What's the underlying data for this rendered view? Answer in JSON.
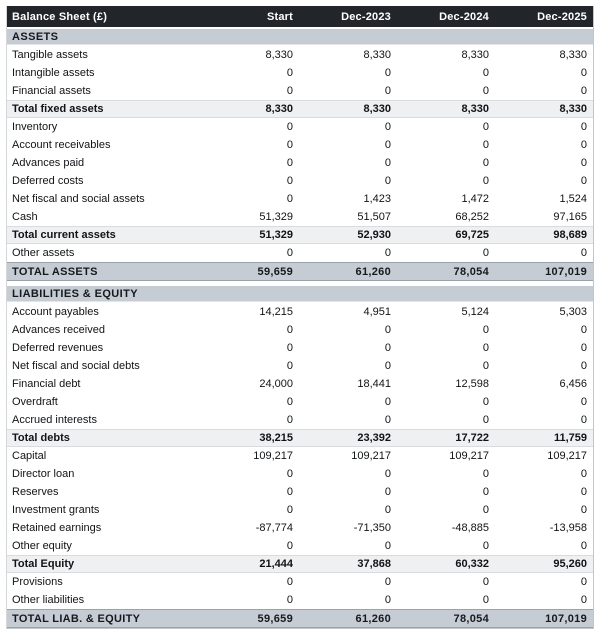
{
  "table": {
    "title": "Balance Sheet (£)",
    "columns": [
      "Start",
      "Dec-2023",
      "Dec-2024",
      "Dec-2025"
    ],
    "colors": {
      "header_bg": "#22262b",
      "header_text": "#ffffff",
      "section_bg": "#c6ccd3",
      "subtotal_bg": "#eef0f2",
      "total_bg": "#c6ccd3",
      "body_text": "#111316"
    },
    "sections": [
      {
        "title": "ASSETS",
        "rows": [
          {
            "label": "Tangible assets",
            "style": "normal",
            "values": [
              "8,330",
              "8,330",
              "8,330",
              "8,330"
            ]
          },
          {
            "label": "Intangible assets",
            "style": "normal",
            "values": [
              "0",
              "0",
              "0",
              "0"
            ]
          },
          {
            "label": "Financial assets",
            "style": "normal",
            "values": [
              "0",
              "0",
              "0",
              "0"
            ]
          },
          {
            "label": "Total fixed assets",
            "style": "subtotal",
            "values": [
              "8,330",
              "8,330",
              "8,330",
              "8,330"
            ]
          },
          {
            "label": "Inventory",
            "style": "normal",
            "values": [
              "0",
              "0",
              "0",
              "0"
            ]
          },
          {
            "label": "Account receivables",
            "style": "normal",
            "values": [
              "0",
              "0",
              "0",
              "0"
            ]
          },
          {
            "label": "Advances paid",
            "style": "normal",
            "values": [
              "0",
              "0",
              "0",
              "0"
            ]
          },
          {
            "label": "Deferred costs",
            "style": "normal",
            "values": [
              "0",
              "0",
              "0",
              "0"
            ]
          },
          {
            "label": "Net fiscal and social assets",
            "style": "normal",
            "values": [
              "0",
              "1,423",
              "1,472",
              "1,524"
            ]
          },
          {
            "label": "Cash",
            "style": "normal",
            "values": [
              "51,329",
              "51,507",
              "68,252",
              "97,165"
            ]
          },
          {
            "label": "Total current assets",
            "style": "subtotal",
            "values": [
              "51,329",
              "52,930",
              "69,725",
              "98,689"
            ]
          },
          {
            "label": "Other assets",
            "style": "normal",
            "values": [
              "0",
              "0",
              "0",
              "0"
            ]
          },
          {
            "label": "TOTAL ASSETS",
            "style": "total",
            "values": [
              "59,659",
              "61,260",
              "78,054",
              "107,019"
            ]
          }
        ]
      },
      {
        "title": "LIABILITIES & EQUITY",
        "rows": [
          {
            "label": "Account payables",
            "style": "normal",
            "values": [
              "14,215",
              "4,951",
              "5,124",
              "5,303"
            ]
          },
          {
            "label": "Advances received",
            "style": "normal",
            "values": [
              "0",
              "0",
              "0",
              "0"
            ]
          },
          {
            "label": "Deferred revenues",
            "style": "normal",
            "values": [
              "0",
              "0",
              "0",
              "0"
            ]
          },
          {
            "label": "Net fiscal and social debts",
            "style": "normal",
            "values": [
              "0",
              "0",
              "0",
              "0"
            ]
          },
          {
            "label": "Financial debt",
            "style": "normal",
            "values": [
              "24,000",
              "18,441",
              "12,598",
              "6,456"
            ]
          },
          {
            "label": "Overdraft",
            "style": "normal",
            "values": [
              "0",
              "0",
              "0",
              "0"
            ]
          },
          {
            "label": "Accrued interests",
            "style": "normal",
            "values": [
              "0",
              "0",
              "0",
              "0"
            ]
          },
          {
            "label": "Total debts",
            "style": "subtotal",
            "values": [
              "38,215",
              "23,392",
              "17,722",
              "11,759"
            ]
          },
          {
            "label": "Capital",
            "style": "normal",
            "values": [
              "109,217",
              "109,217",
              "109,217",
              "109,217"
            ]
          },
          {
            "label": "Director loan",
            "style": "normal",
            "values": [
              "0",
              "0",
              "0",
              "0"
            ]
          },
          {
            "label": "Reserves",
            "style": "normal",
            "values": [
              "0",
              "0",
              "0",
              "0"
            ]
          },
          {
            "label": "Investment grants",
            "style": "normal",
            "values": [
              "0",
              "0",
              "0",
              "0"
            ]
          },
          {
            "label": "Retained earnings",
            "style": "normal",
            "values": [
              "-87,774",
              "-71,350",
              "-48,885",
              "-13,958"
            ]
          },
          {
            "label": "Other equity",
            "style": "normal",
            "values": [
              "0",
              "0",
              "0",
              "0"
            ]
          },
          {
            "label": "Total Equity",
            "style": "subtotal",
            "values": [
              "21,444",
              "37,868",
              "60,332",
              "95,260"
            ]
          },
          {
            "label": "Provisions",
            "style": "normal",
            "values": [
              "0",
              "0",
              "0",
              "0"
            ]
          },
          {
            "label": "Other liabilities",
            "style": "normal",
            "values": [
              "0",
              "0",
              "0",
              "0"
            ]
          },
          {
            "label": "TOTAL LIAB. & EQUITY",
            "style": "total",
            "values": [
              "59,659",
              "61,260",
              "78,054",
              "107,019"
            ]
          }
        ]
      }
    ]
  }
}
